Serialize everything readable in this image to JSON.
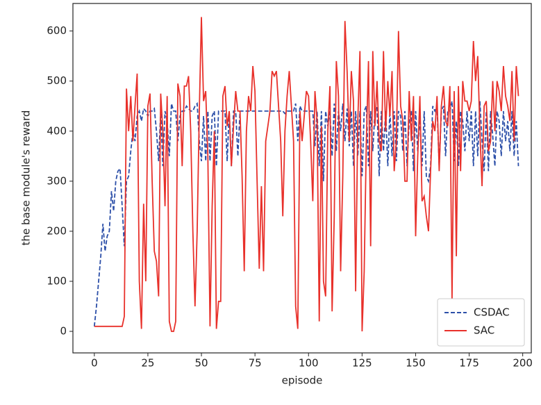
{
  "chart_data": {
    "type": "line",
    "xlabel": "episode",
    "ylabel": "the base module's reward",
    "xlim": [
      -10,
      204
    ],
    "xticks": [
      0,
      25,
      50,
      75,
      100,
      125,
      150,
      175,
      200
    ],
    "ylim": [
      -43,
      655
    ],
    "yticks": [
      0,
      100,
      200,
      300,
      400,
      500,
      600
    ],
    "legend": "lower right",
    "x": [
      0,
      1,
      2,
      3,
      4,
      5,
      6,
      7,
      8,
      9,
      10,
      11,
      12,
      13,
      14,
      15,
      16,
      17,
      18,
      19,
      20,
      21,
      22,
      23,
      24,
      25,
      26,
      27,
      28,
      29,
      30,
      31,
      32,
      33,
      34,
      35,
      36,
      37,
      38,
      39,
      40,
      41,
      42,
      43,
      44,
      45,
      46,
      47,
      48,
      49,
      50,
      51,
      52,
      53,
      54,
      55,
      56,
      57,
      58,
      59,
      60,
      61,
      62,
      63,
      64,
      65,
      66,
      67,
      68,
      69,
      70,
      71,
      72,
      73,
      74,
      75,
      76,
      77,
      78,
      79,
      80,
      81,
      82,
      83,
      84,
      85,
      86,
      87,
      88,
      89,
      90,
      91,
      92,
      93,
      94,
      95,
      96,
      97,
      98,
      99,
      100,
      101,
      102,
      103,
      104,
      105,
      106,
      107,
      108,
      109,
      110,
      111,
      112,
      113,
      114,
      115,
      116,
      117,
      118,
      119,
      120,
      121,
      122,
      123,
      124,
      125,
      126,
      127,
      128,
      129,
      130,
      131,
      132,
      133,
      134,
      135,
      136,
      137,
      138,
      139,
      140,
      141,
      142,
      143,
      144,
      145,
      146,
      147,
      148,
      149,
      150,
      151,
      152,
      153,
      154,
      155,
      156,
      157,
      158,
      159,
      160,
      161,
      162,
      163,
      164,
      165,
      166,
      167,
      168,
      169,
      170,
      171,
      172,
      173,
      174,
      175,
      176,
      177,
      178,
      179,
      180,
      181,
      182,
      183,
      184,
      185,
      186,
      187,
      188,
      189,
      190,
      191,
      192,
      193,
      194,
      195,
      196,
      197,
      198
    ],
    "series": [
      {
        "name": "CSDAC",
        "color": "#2c4fa8",
        "dash": true,
        "values": [
          10,
          50,
          100,
          150,
          215,
          160,
          190,
          200,
          280,
          240,
          300,
          320,
          325,
          250,
          170,
          300,
          310,
          360,
          400,
          380,
          430,
          440,
          420,
          445,
          440,
          430,
          440,
          440,
          445,
          400,
          340,
          440,
          330,
          440,
          420,
          350,
          455,
          440,
          440,
          380,
          430,
          440,
          440,
          450,
          445,
          440,
          440,
          450,
          455,
          380,
          340,
          430,
          340,
          440,
          340,
          430,
          440,
          330,
          440,
          440,
          440,
          440,
          340,
          440,
          330,
          440,
          440,
          350,
          440,
          440,
          440,
          440,
          440,
          440,
          440,
          440,
          440,
          440,
          440,
          440,
          440,
          440,
          440,
          440,
          440,
          440,
          440,
          440,
          440,
          435,
          440,
          440,
          440,
          440,
          455,
          380,
          450,
          440,
          440,
          440,
          440,
          440,
          440,
          370,
          440,
          330,
          440,
          300,
          440,
          410,
          440,
          350,
          455,
          360,
          440,
          400,
          455,
          380,
          445,
          370,
          440,
          330,
          440,
          350,
          440,
          310,
          440,
          450,
          330,
          440,
          360,
          440,
          450,
          310,
          440,
          360,
          440,
          330,
          440,
          350,
          440,
          340,
          440,
          430,
          360,
          440,
          330,
          420,
          440,
          320,
          440,
          360,
          430,
          330,
          440,
          310,
          300,
          330,
          450,
          440,
          450,
          330,
          440,
          450,
          350,
          440,
          440,
          460,
          340,
          420,
          330,
          440,
          420,
          360,
          440,
          380,
          440,
          330,
          440,
          350,
          460,
          380,
          320,
          440,
          320,
          440,
          390,
          330,
          440,
          420,
          350,
          440,
          380,
          420,
          360,
          440,
          350,
          420,
          330
        ]
      },
      {
        "name": "SAC",
        "color": "#e8302a",
        "dash": false,
        "values": [
          10,
          10,
          10,
          10,
          10,
          10,
          10,
          10,
          10,
          10,
          10,
          10,
          10,
          10,
          30,
          485,
          400,
          470,
          380,
          450,
          515,
          100,
          5,
          255,
          100,
          450,
          475,
          300,
          160,
          140,
          70,
          475,
          400,
          250,
          470,
          20,
          0,
          0,
          20,
          495,
          470,
          330,
          490,
          490,
          510,
          400,
          200,
          50,
          200,
          440,
          628,
          460,
          480,
          350,
          10,
          250,
          400,
          5,
          60,
          60,
          470,
          490,
          410,
          440,
          330,
          410,
          480,
          440,
          440,
          310,
          120,
          400,
          470,
          440,
          530,
          480,
          300,
          125,
          290,
          120,
          380,
          410,
          440,
          520,
          510,
          520,
          450,
          380,
          230,
          400,
          470,
          520,
          450,
          380,
          50,
          5,
          440,
          380,
          430,
          480,
          470,
          380,
          260,
          480,
          420,
          20,
          410,
          100,
          70,
          400,
          490,
          40,
          230,
          540,
          470,
          120,
          310,
          620,
          520,
          380,
          520,
          460,
          80,
          420,
          560,
          0,
          120,
          380,
          540,
          170,
          560,
          410,
          500,
          380,
          360,
          560,
          400,
          500,
          430,
          520,
          320,
          380,
          600,
          450,
          420,
          300,
          300,
          480,
          380,
          470,
          190,
          350,
          470,
          260,
          270,
          230,
          200,
          320,
          420,
          400,
          470,
          320,
          450,
          490,
          420,
          410,
          490,
          65,
          480,
          150,
          490,
          320,
          500,
          460,
          460,
          440,
          460,
          580,
          500,
          550,
          400,
          290,
          450,
          460,
          360,
          380,
          500,
          400,
          500,
          480,
          440,
          530,
          470,
          450,
          420,
          520,
          380,
          530,
          470
        ]
      }
    ]
  }
}
